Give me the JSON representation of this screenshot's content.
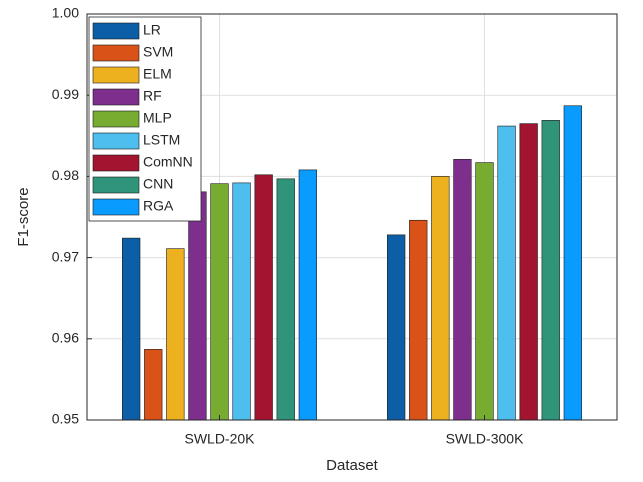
{
  "chart_data": {
    "type": "grouped-bar",
    "xlabel": "Dataset",
    "ylabel": "F1-score",
    "categories": [
      "SWLD-20K",
      "SWLD-300K"
    ],
    "series": [
      {
        "name": "LR",
        "color": "#0c5fa6",
        "values": [
          0.9724,
          0.9728
        ]
      },
      {
        "name": "SVM",
        "color": "#d95319",
        "values": [
          0.9587,
          0.9746
        ]
      },
      {
        "name": "ELM",
        "color": "#edb120",
        "values": [
          0.9711,
          0.98
        ]
      },
      {
        "name": "RF",
        "color": "#7e2f8e",
        "values": [
          0.9781,
          0.9821
        ]
      },
      {
        "name": "MLP",
        "color": "#77ac30",
        "values": [
          0.9791,
          0.9817
        ]
      },
      {
        "name": "LSTM",
        "color": "#4dbeee",
        "values": [
          0.9792,
          0.9862
        ]
      },
      {
        "name": "ComNN",
        "color": "#a2142f",
        "values": [
          0.9802,
          0.9865
        ]
      },
      {
        "name": "CNN",
        "color": "#2f9479",
        "values": [
          0.9797,
          0.9869
        ]
      },
      {
        "name": "RGA",
        "color": "#0a9bff",
        "values": [
          0.9808,
          0.9887
        ]
      }
    ],
    "ylim": [
      0.95,
      1
    ],
    "yticks": [
      0.95,
      0.96,
      0.97,
      0.98,
      0.99,
      {
        "value": 1,
        "label": "1.00"
      }
    ],
    "grid": true,
    "legend": "upper-left"
  }
}
